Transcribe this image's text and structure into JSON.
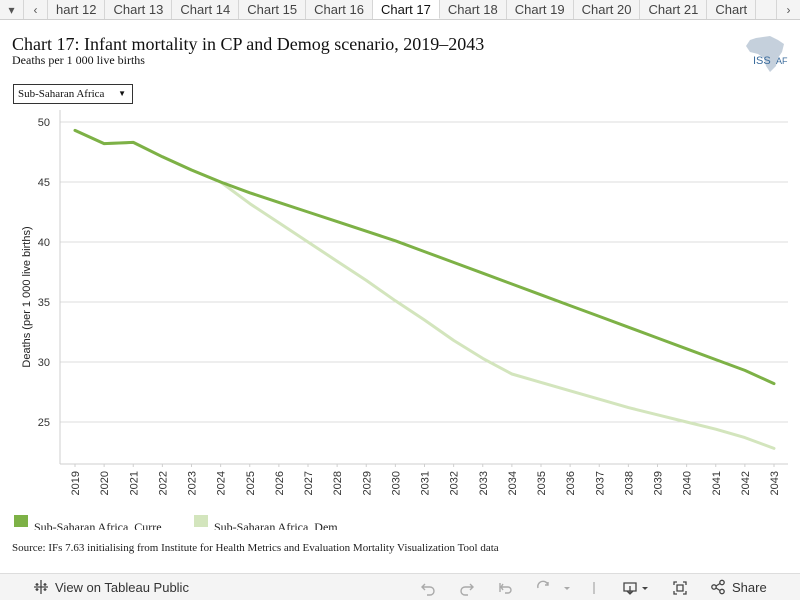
{
  "tabs": {
    "items": [
      "hart 12",
      "Chart 13",
      "Chart 14",
      "Chart 15",
      "Chart 16",
      "Chart 17",
      "Chart 18",
      "Chart 19",
      "Chart 20",
      "Chart 21",
      "Chart"
    ],
    "active_index": 5
  },
  "header": {
    "title": "Chart 17: Infant mortality in CP and Demog scenario, 2019–2043",
    "subtitle": "Deaths per 1 000 live births"
  },
  "logo": {
    "text": "ISS",
    "text2": "AF"
  },
  "filter": {
    "selected": "Sub-Saharan Africa"
  },
  "legend": {
    "items": [
      {
        "label": "Sub-Saharan Africa, Curre",
        "color": "#7db146"
      },
      {
        "label": "Sub-Saharan Africa, Dem",
        "color": "#d3e5bd"
      }
    ]
  },
  "source": "Source: IFs 7.63 initialising from Institute for Health Metrics and Evaluation Mortality Visualization Tool data",
  "footer": {
    "view_label": "View on Tableau Public",
    "share_label": "Share"
  },
  "chart_data": {
    "type": "line",
    "ylabel": "Deaths (per 1 000 live births)",
    "xlabel": "",
    "ylim": [
      21.5,
      51
    ],
    "yticks": [
      25,
      30,
      35,
      40,
      45,
      50
    ],
    "x": [
      "2019",
      "2020",
      "2021",
      "2022",
      "2023",
      "2024",
      "2025",
      "2026",
      "2027",
      "2028",
      "2029",
      "2030",
      "2031",
      "2032",
      "2033",
      "2034",
      "2035",
      "2036",
      "2037",
      "2038",
      "2039",
      "2040",
      "2041",
      "2042",
      "2043"
    ],
    "grid": true,
    "series": [
      {
        "name": "Sub-Saharan Africa, Curre",
        "color": "#7db146",
        "values": [
          49.3,
          48.2,
          48.3,
          47.1,
          46.0,
          45.0,
          44.1,
          43.3,
          42.5,
          41.7,
          40.9,
          40.1,
          39.2,
          38.3,
          37.4,
          36.5,
          35.6,
          34.7,
          33.8,
          32.9,
          32.0,
          31.1,
          30.2,
          29.3,
          28.2
        ]
      },
      {
        "name": "Sub-Saharan Africa, Dem",
        "color": "#d3e5bd",
        "values": [
          49.3,
          48.2,
          48.3,
          47.1,
          46.0,
          45.0,
          43.2,
          41.6,
          40.0,
          38.4,
          36.8,
          35.1,
          33.5,
          31.8,
          30.3,
          29.0,
          28.3,
          27.6,
          26.9,
          26.2,
          25.6,
          25.0,
          24.4,
          23.7,
          22.8
        ]
      }
    ]
  }
}
